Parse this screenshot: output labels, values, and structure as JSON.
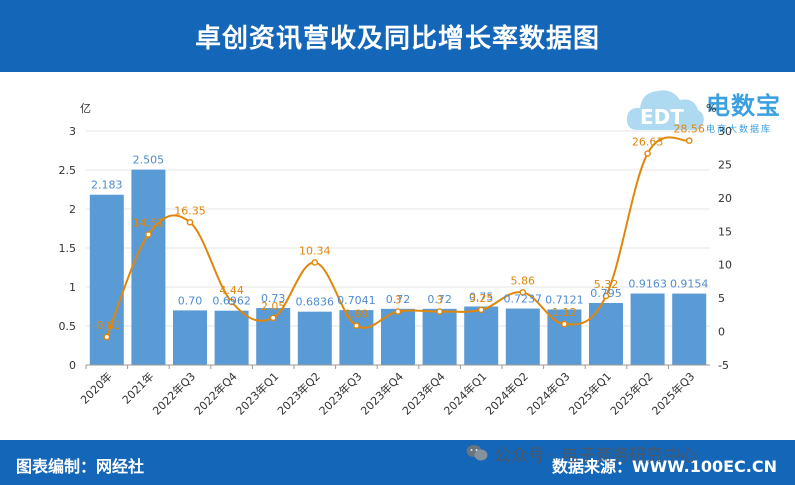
{
  "header": {
    "title": "卓创资讯营收及同比增长率数据图"
  },
  "footer": {
    "left": "图表编制：网经社",
    "right": "数据来源：WWW.100EC.CN"
  },
  "wechat": {
    "text": "公众号 · 电子商务研究中心"
  },
  "watermark": {
    "title": "电数宝",
    "subtitle": "电商大数据库",
    "logo_text": "EDT"
  },
  "chart_data": {
    "type": "bar",
    "categories": [
      "2020年",
      "2021年",
      "2022年Q3",
      "2022年Q4",
      "2023年Q1",
      "2023年Q2",
      "2023年Q3",
      "2023年Q4",
      "2023年Q4",
      "2024年Q1",
      "2024年Q2",
      "2024年Q3",
      "2025年Q1",
      "2025年Q2",
      "2025年Q3"
    ],
    "series": [
      {
        "type": "bar",
        "axis": "left",
        "values": [
          2.183,
          2.505,
          0.7,
          0.6962,
          0.73,
          0.6836,
          0.7041,
          0.72,
          0.72,
          0.75,
          0.7237,
          0.7121,
          0.795,
          0.9163,
          0.9154
        ],
        "labels": [
          "2.183",
          "2.505",
          "0.70",
          "0.6962",
          "0.73",
          "0.6836",
          "0.7041",
          "0.72",
          "0.72",
          "0.75",
          "0.7237",
          "0.7121",
          "0.795",
          "0.9163",
          "0.9154"
        ],
        "color": "#5b9bd5"
      },
      {
        "type": "line",
        "axis": "right",
        "values": [
          -0.81,
          14.51,
          16.35,
          4.44,
          2.05,
          10.34,
          0.89,
          3.0,
          3.0,
          3.25,
          5.86,
          1.12,
          5.32,
          26.63,
          28.56
        ],
        "labels": [
          "-0.81",
          "14.51",
          "16.35",
          "4.44",
          "2.05",
          "10.34",
          "0.89",
          "3",
          "3",
          "3.25",
          "5.86",
          "1.12",
          "5.32",
          "26.63",
          "28.56"
        ],
        "color": "#e0870b"
      }
    ],
    "y_left": {
      "unit": "亿",
      "ticks": [
        0,
        0.5,
        1,
        1.5,
        2,
        2.5,
        3
      ],
      "ylim": [
        0,
        3
      ]
    },
    "y_right": {
      "unit": "%",
      "ticks": [
        -5,
        0,
        5,
        10,
        15,
        20,
        25,
        30
      ],
      "ylim": [
        -5,
        30
      ]
    },
    "grid": true,
    "legend": "none"
  }
}
